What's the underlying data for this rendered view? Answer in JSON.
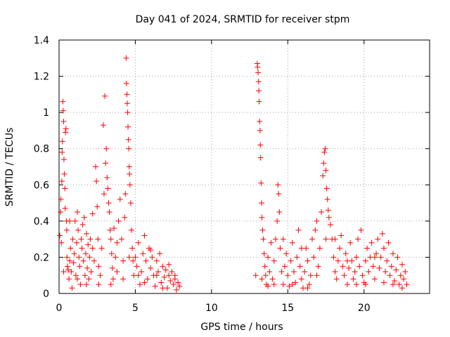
{
  "colors": {
    "marker": "#ff0000",
    "axis": "#000000",
    "grid": "#a0a0a0",
    "background": "#ffffff"
  },
  "chart_data": {
    "type": "scatter",
    "title": "Day 041 of 2024, SRMTID for receiver stpm",
    "xlabel": "GPS time / hours",
    "ylabel": "SRMTID / TECUs",
    "xlim": [
      0,
      24.3
    ],
    "ylim": [
      0,
      1.4
    ],
    "xticks": [
      0,
      5,
      10,
      15,
      20
    ],
    "xtick_labels": [
      "0",
      "5",
      "10",
      "15",
      "20"
    ],
    "yticks": [
      0,
      0.2,
      0.4,
      0.6,
      0.8,
      1,
      1.2,
      1.4
    ],
    "ytick_labels": [
      "0",
      "0.2",
      "0.4",
      "0.6",
      "0.8",
      "1",
      "1.2",
      "1.4"
    ],
    "grid": true,
    "marker": "+",
    "series": [
      {
        "name": "SRMTID",
        "points": [
          [
            0.05,
            0.32
          ],
          [
            0.1,
            0.45
          ],
          [
            0.12,
            0.52
          ],
          [
            0.15,
            0.28
          ],
          [
            0.18,
            0.62
          ],
          [
            0.2,
            0.78
          ],
          [
            0.22,
            0.84
          ],
          [
            0.25,
            1.06
          ],
          [
            0.27,
            1.01
          ],
          [
            0.3,
            0.95
          ],
          [
            0.32,
            0.74
          ],
          [
            0.35,
            0.66
          ],
          [
            0.38,
            0.58
          ],
          [
            0.4,
            0.47
          ],
          [
            0.42,
            0.89
          ],
          [
            0.45,
            0.91
          ],
          [
            0.48,
            0.4
          ],
          [
            0.5,
            0.35
          ],
          [
            0.52,
            0.2
          ],
          [
            0.55,
            0.15
          ],
          [
            0.6,
            0.13
          ],
          [
            0.65,
            0.08
          ],
          [
            0.7,
            0.18
          ],
          [
            0.75,
            0.25
          ],
          [
            0.8,
            0.12
          ],
          [
            0.85,
            0.03
          ],
          [
            0.9,
            0.3
          ],
          [
            0.95,
            0.17
          ],
          [
            1.0,
            0.22
          ],
          [
            1.05,
            0.4
          ],
          [
            1.1,
            0.1
          ],
          [
            1.15,
            0.28
          ],
          [
            1.2,
            0.45
          ],
          [
            1.25,
            0.35
          ],
          [
            1.3,
            0.2
          ],
          [
            1.35,
            0.15
          ],
          [
            1.4,
            0.05
          ],
          [
            1.45,
            0.3
          ],
          [
            1.5,
            0.25
          ],
          [
            1.55,
            0.38
          ],
          [
            1.6,
            0.18
          ],
          [
            1.65,
            0.42
          ],
          [
            1.7,
            0.1
          ],
          [
            1.75,
            0.22
          ],
          [
            1.8,
            0.33
          ],
          [
            1.85,
            0.14
          ],
          [
            1.9,
            0.27
          ],
          [
            1.95,
            0.08
          ],
          [
            2.0,
            0.2
          ],
          [
            2.05,
            0.3
          ],
          [
            2.1,
            0.12
          ],
          [
            2.2,
            0.44
          ],
          [
            2.3,
            0.18
          ],
          [
            2.4,
            0.7
          ],
          [
            2.45,
            0.62
          ],
          [
            2.5,
            0.48
          ],
          [
            2.55,
            0.3
          ],
          [
            2.6,
            0.15
          ],
          [
            2.7,
            0.1
          ],
          [
            2.8,
            0.25
          ],
          [
            2.9,
            0.93
          ],
          [
            2.95,
            0.55
          ],
          [
            3.0,
            1.09
          ],
          [
            3.05,
            0.72
          ],
          [
            3.1,
            0.8
          ],
          [
            3.15,
            0.64
          ],
          [
            3.2,
            0.58
          ],
          [
            3.25,
            0.5
          ],
          [
            3.3,
            0.45
          ],
          [
            3.35,
            0.35
          ],
          [
            3.4,
            0.3
          ],
          [
            3.45,
            0.22
          ],
          [
            3.5,
            0.14
          ],
          [
            3.55,
            0.08
          ],
          [
            3.6,
            0.36
          ],
          [
            3.7,
            0.2
          ],
          [
            3.8,
            0.12
          ],
          [
            3.9,
            0.4
          ],
          [
            4.0,
            0.52
          ],
          [
            4.1,
            0.3
          ],
          [
            4.2,
            0.18
          ],
          [
            4.3,
            0.42
          ],
          [
            4.35,
            0.55
          ],
          [
            4.4,
            1.3
          ],
          [
            4.42,
            1.16
          ],
          [
            4.45,
            1.1
          ],
          [
            4.47,
            1.05
          ],
          [
            4.5,
            1.0
          ],
          [
            4.52,
            0.92
          ],
          [
            4.55,
            0.85
          ],
          [
            4.57,
            0.8
          ],
          [
            4.6,
            0.7
          ],
          [
            4.62,
            0.66
          ],
          [
            4.65,
            0.6
          ],
          [
            4.7,
            0.5
          ],
          [
            4.75,
            0.35
          ],
          [
            4.8,
            0.25
          ],
          [
            4.85,
            0.18
          ],
          [
            4.9,
            0.1
          ],
          [
            5.0,
            0.2
          ],
          [
            5.1,
            0.15
          ],
          [
            5.2,
            0.28
          ],
          [
            5.3,
            0.05
          ],
          [
            5.4,
            0.12
          ],
          [
            5.5,
            0.22
          ],
          [
            5.6,
            0.32
          ],
          [
            5.7,
            0.18
          ],
          [
            5.8,
            0.08
          ],
          [
            5.9,
            0.25
          ],
          [
            6.0,
            0.14
          ],
          [
            6.1,
            0.2
          ],
          [
            6.2,
            0.1
          ],
          [
            6.3,
            0.04
          ],
          [
            6.4,
            0.18
          ],
          [
            6.5,
            0.12
          ],
          [
            6.6,
            0.22
          ],
          [
            6.7,
            0.06
          ],
          [
            6.8,
            0.15
          ],
          [
            6.9,
            0.09
          ],
          [
            7.0,
            0.13
          ],
          [
            7.1,
            0.03
          ],
          [
            7.2,
            0.1
          ],
          [
            7.3,
            0.07
          ],
          [
            7.4,
            0.12
          ],
          [
            7.5,
            0.05
          ],
          [
            7.6,
            0.08
          ],
          [
            7.7,
            0.02
          ],
          [
            7.8,
            0.06
          ],
          [
            7.9,
            0.04
          ],
          [
            0.3,
            0.12
          ],
          [
            0.7,
            0.4
          ],
          [
            1.2,
            0.08
          ],
          [
            1.8,
            0.05
          ],
          [
            2.2,
            0.25
          ],
          [
            2.6,
            0.05
          ],
          [
            3.4,
            0.05
          ],
          [
            3.8,
            0.28
          ],
          [
            4.2,
            0.08
          ],
          [
            4.6,
            0.2
          ],
          [
            5.2,
            0.1
          ],
          [
            5.6,
            0.06
          ],
          [
            6.0,
            0.24
          ],
          [
            6.4,
            0.1
          ],
          [
            6.8,
            0.03
          ],
          [
            7.2,
            0.16
          ],
          [
            7.6,
            0.1
          ],
          [
            12.9,
            0.1
          ],
          [
            13.0,
            1.27
          ],
          [
            13.02,
            1.25
          ],
          [
            13.05,
            1.22
          ],
          [
            13.08,
            1.17
          ],
          [
            13.1,
            1.12
          ],
          [
            13.12,
            1.06
          ],
          [
            13.15,
            0.95
          ],
          [
            13.18,
            0.9
          ],
          [
            13.2,
            0.82
          ],
          [
            13.22,
            0.75
          ],
          [
            13.25,
            0.61
          ],
          [
            13.28,
            0.5
          ],
          [
            13.3,
            0.42
          ],
          [
            13.35,
            0.35
          ],
          [
            13.4,
            0.3
          ],
          [
            13.45,
            0.22
          ],
          [
            13.5,
            0.15
          ],
          [
            13.55,
            0.1
          ],
          [
            13.6,
            0.05
          ],
          [
            13.7,
            0.2
          ],
          [
            13.8,
            0.12
          ],
          [
            13.9,
            0.28
          ],
          [
            14.0,
            0.08
          ],
          [
            14.1,
            0.18
          ],
          [
            14.2,
            0.3
          ],
          [
            14.3,
            0.4
          ],
          [
            14.35,
            0.6
          ],
          [
            14.4,
            0.55
          ],
          [
            14.45,
            0.45
          ],
          [
            14.5,
            0.25
          ],
          [
            14.6,
            0.12
          ],
          [
            14.7,
            0.05
          ],
          [
            14.8,
            0.15
          ],
          [
            14.9,
            0.22
          ],
          [
            15.0,
            0.1
          ],
          [
            15.1,
            0.04
          ],
          [
            15.2,
            0.18
          ],
          [
            15.3,
            0.28
          ],
          [
            15.4,
            0.12
          ],
          [
            15.5,
            0.06
          ],
          [
            15.6,
            0.2
          ],
          [
            15.7,
            0.35
          ],
          [
            15.8,
            0.15
          ],
          [
            15.9,
            0.08
          ],
          [
            16.0,
            0.03
          ],
          [
            16.1,
            0.12
          ],
          [
            16.2,
            0.25
          ],
          [
            16.3,
            0.18
          ],
          [
            16.4,
            0.05
          ],
          [
            16.5,
            0.1
          ],
          [
            16.6,
            0.3
          ],
          [
            16.7,
            0.2
          ],
          [
            16.8,
            0.35
          ],
          [
            16.9,
            0.4
          ],
          [
            17.0,
            0.15
          ],
          [
            17.1,
            0.25
          ],
          [
            17.2,
            0.45
          ],
          [
            17.3,
            0.65
          ],
          [
            17.35,
            0.72
          ],
          [
            17.4,
            0.78
          ],
          [
            17.45,
            0.8
          ],
          [
            17.5,
            0.68
          ],
          [
            17.55,
            0.58
          ],
          [
            17.6,
            0.52
          ],
          [
            17.65,
            0.46
          ],
          [
            17.7,
            0.42
          ],
          [
            17.8,
            0.38
          ],
          [
            17.9,
            0.3
          ],
          [
            18.0,
            0.2
          ],
          [
            18.1,
            0.12
          ],
          [
            18.2,
            0.08
          ],
          [
            18.3,
            0.18
          ],
          [
            18.4,
            0.25
          ],
          [
            18.5,
            0.32
          ],
          [
            18.6,
            0.15
          ],
          [
            18.7,
            0.1
          ],
          [
            18.8,
            0.22
          ],
          [
            18.9,
            0.05
          ],
          [
            19.0,
            0.14
          ],
          [
            19.1,
            0.28
          ],
          [
            19.2,
            0.18
          ],
          [
            19.3,
            0.08
          ],
          [
            19.4,
            0.12
          ],
          [
            19.5,
            0.2
          ],
          [
            19.6,
            0.3
          ],
          [
            19.7,
            0.15
          ],
          [
            19.8,
            0.35
          ],
          [
            19.9,
            0.1
          ],
          [
            20.0,
            0.06
          ],
          [
            20.1,
            0.18
          ],
          [
            20.2,
            0.25
          ],
          [
            20.3,
            0.12
          ],
          [
            20.4,
            0.2
          ],
          [
            20.5,
            0.28
          ],
          [
            20.6,
            0.15
          ],
          [
            20.7,
            0.08
          ],
          [
            20.8,
            0.22
          ],
          [
            20.9,
            0.3
          ],
          [
            21.0,
            0.14
          ],
          [
            21.1,
            0.2
          ],
          [
            21.2,
            0.33
          ],
          [
            21.3,
            0.25
          ],
          [
            21.4,
            0.12
          ],
          [
            21.5,
            0.18
          ],
          [
            21.6,
            0.28
          ],
          [
            21.7,
            0.1
          ],
          [
            21.8,
            0.15
          ],
          [
            21.9,
            0.22
          ],
          [
            22.0,
            0.07
          ],
          [
            22.1,
            0.13
          ],
          [
            22.2,
            0.2
          ],
          [
            22.3,
            0.05
          ],
          [
            22.4,
            0.1
          ],
          [
            22.5,
            0.16
          ],
          [
            22.6,
            0.08
          ],
          [
            22.7,
            0.12
          ],
          [
            22.8,
            0.05
          ],
          [
            13.3,
            0.08
          ],
          [
            13.7,
            0.04
          ],
          [
            14.1,
            0.05
          ],
          [
            14.7,
            0.3
          ],
          [
            15.3,
            0.05
          ],
          [
            15.9,
            0.25
          ],
          [
            16.3,
            0.03
          ],
          [
            16.9,
            0.1
          ],
          [
            17.5,
            0.3
          ],
          [
            18.1,
            0.3
          ],
          [
            18.9,
            0.18
          ],
          [
            19.5,
            0.05
          ],
          [
            20.1,
            0.05
          ],
          [
            20.7,
            0.2
          ],
          [
            21.3,
            0.06
          ],
          [
            21.9,
            0.05
          ],
          [
            22.5,
            0.03
          ]
        ]
      }
    ]
  }
}
